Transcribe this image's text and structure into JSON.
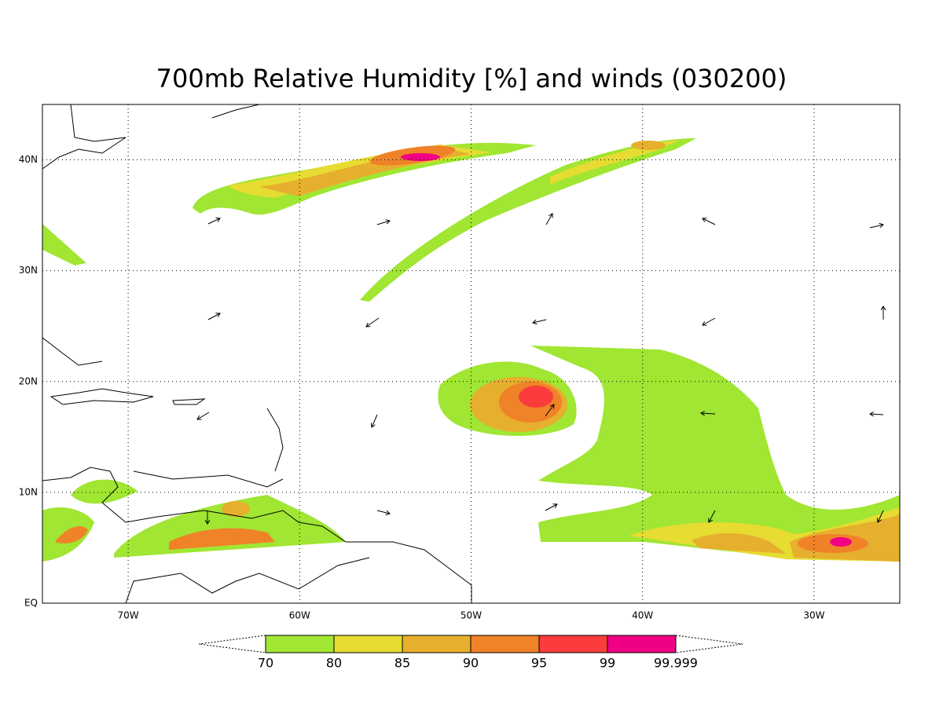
{
  "title": "700mb Relative Humidity [%] and winds (030200)",
  "lon_labels": [
    "70W",
    "60W",
    "50W",
    "40W",
    "30W"
  ],
  "lat_labels": [
    "EQ",
    "10N",
    "20N",
    "30N",
    "40N"
  ],
  "colorbar": {
    "labels": [
      "70",
      "80",
      "85",
      "90",
      "95",
      "99",
      "99.999"
    ],
    "colors": [
      "#a0e632",
      "#e6dc32",
      "#e6af2d",
      "#f08228",
      "#fa3c3c",
      "#f00082"
    ]
  }
}
